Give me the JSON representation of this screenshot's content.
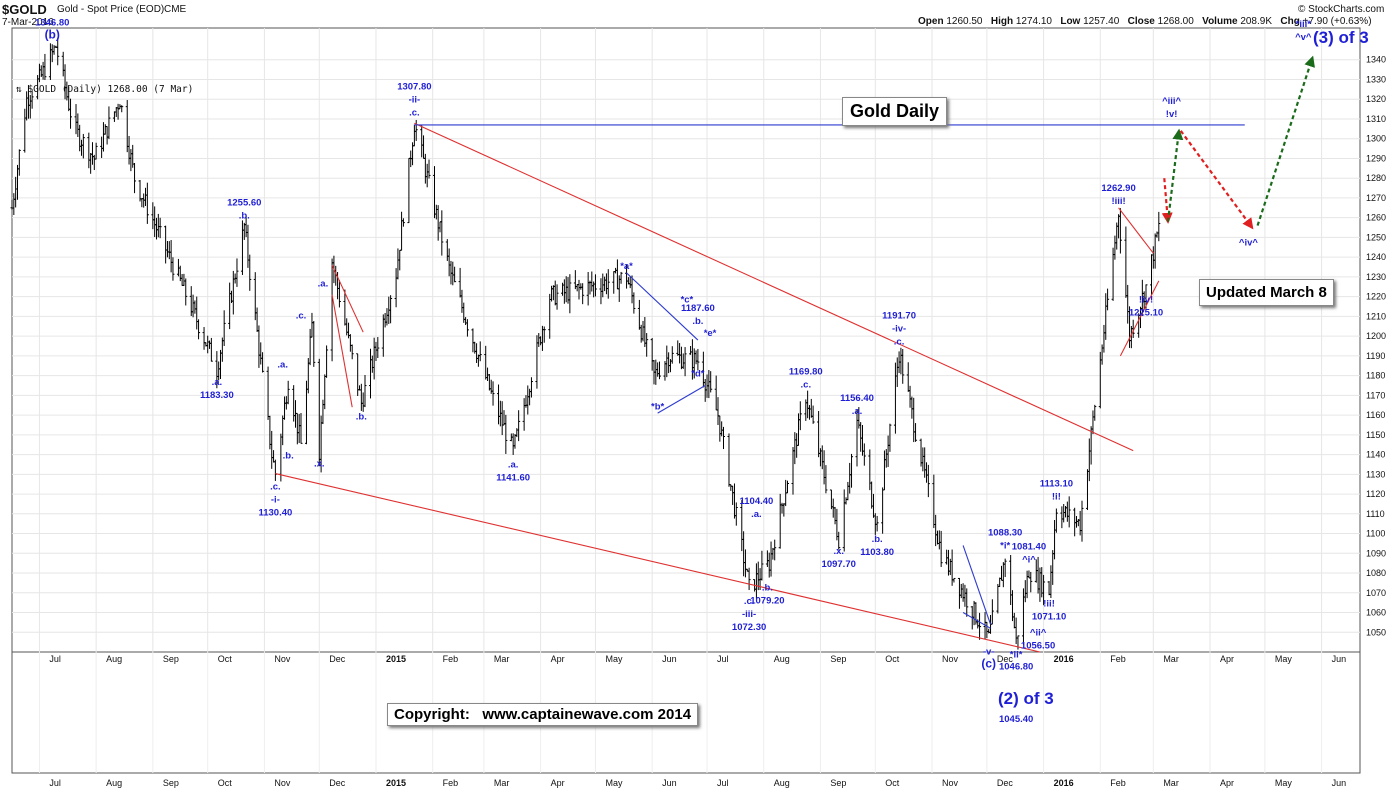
{
  "header": {
    "symbol": "$GOLD",
    "description": "Gold - Spot Price (EOD)",
    "exchange": "CME",
    "date": "7-Mar-2016",
    "brand": "© StockCharts.com",
    "ohlc": {
      "open_label": "Open",
      "open": "1260.50",
      "high_label": "High",
      "high": "1274.10",
      "low_label": "Low",
      "low": "1257.40",
      "close_label": "Close",
      "close": "1268.00",
      "volume_label": "Volume",
      "volume": "208.9K",
      "chg_label": "Chg",
      "chg": "+7.90 (+0.63%)"
    }
  },
  "legend": {
    "text": "$GOLD (Daily) 1268.00 (7 Mar)"
  },
  "annotations": {
    "title_box": "Gold Daily",
    "updated_box": "Updated March 8",
    "copyright_box": "Copyright:   www.captainewave.com 2014",
    "two_of_three": "(2) of 3",
    "three_of_three": "(3) of 3"
  },
  "colors": {
    "wave_labels": "#1f1fd6",
    "trendlines": "#e03030",
    "resistance": "#2e3bd0",
    "bars": "#000000",
    "projection_up": "#1a6b1a",
    "projection_down": "#e02020"
  },
  "chart_data": {
    "type": "ohlc",
    "title": "Gold Daily",
    "ylim": [
      1040,
      1350
    ],
    "y_ticks": [
      1050,
      1060,
      1070,
      1080,
      1090,
      1100,
      1110,
      1120,
      1130,
      1140,
      1150,
      1160,
      1170,
      1180,
      1190,
      1200,
      1210,
      1220,
      1230,
      1240,
      1250,
      1260,
      1270,
      1280,
      1290,
      1300,
      1310,
      1320,
      1330,
      1340
    ],
    "x_ticks": [
      "Jul",
      "Aug",
      "Sep",
      "Oct",
      "Nov",
      "Dec",
      "2015",
      "Feb",
      "Mar",
      "Apr",
      "May",
      "Jun",
      "Jul",
      "Aug",
      "Sep",
      "Oct",
      "Nov",
      "Dec",
      "2016",
      "Feb",
      "Mar",
      "Apr",
      "May",
      "Jun"
    ],
    "x_range": [
      "2014-06-16",
      "2016-06-22"
    ],
    "grid": true,
    "price_path": [
      [
        "2014-06-16",
        1265
      ],
      [
        "2014-06-24",
        1320
      ],
      [
        "2014-07-01",
        1330
      ],
      [
        "2014-07-10",
        1346.8
      ],
      [
        "2014-07-20",
        1305
      ],
      [
        "2014-07-31",
        1290
      ],
      [
        "2014-08-14",
        1320
      ],
      [
        "2014-08-22",
        1280
      ],
      [
        "2014-09-10",
        1240
      ],
      [
        "2014-09-22",
        1215
      ],
      [
        "2014-10-06",
        1183.3
      ],
      [
        "2014-10-21",
        1255.6
      ],
      [
        "2014-11-05",
        1140
      ],
      [
        "2014-11-07",
        1130.4
      ],
      [
        "2014-11-14",
        1178
      ],
      [
        "2014-11-21",
        1145
      ],
      [
        "2014-11-27",
        1205
      ],
      [
        "2014-12-01",
        1142
      ],
      [
        "2014-12-08",
        1238
      ],
      [
        "2014-12-24",
        1166
      ],
      [
        "2015-01-12",
        1232
      ],
      [
        "2015-01-22",
        1307.8
      ],
      [
        "2015-02-10",
        1234
      ],
      [
        "2015-03-06",
        1168
      ],
      [
        "2015-03-17",
        1141.6
      ],
      [
        "2015-04-06",
        1220
      ],
      [
        "2015-05-18",
        1230
      ],
      [
        "2015-06-02",
        1180
      ],
      [
        "2015-06-10",
        1190
      ],
      [
        "2015-06-26",
        1187.6
      ],
      [
        "2015-07-07",
        1160
      ],
      [
        "2015-07-24",
        1072.3
      ],
      [
        "2015-08-04",
        1085
      ],
      [
        "2015-08-24",
        1169.8
      ],
      [
        "2015-09-11",
        1097.7
      ],
      [
        "2015-09-21",
        1156.4
      ],
      [
        "2015-10-02",
        1103.8
      ],
      [
        "2015-10-14",
        1191.7
      ],
      [
        "2015-11-06",
        1090
      ],
      [
        "2015-12-02",
        1046.8
      ],
      [
        "2015-12-11",
        1088.3
      ],
      [
        "2015-12-17",
        1045.4
      ],
      [
        "2015-12-24",
        1081.4
      ],
      [
        "2016-01-04",
        1071.1
      ],
      [
        "2016-01-08",
        1113.1
      ],
      [
        "2016-01-21",
        1105
      ],
      [
        "2016-02-11",
        1262.9
      ],
      [
        "2016-02-17",
        1200
      ],
      [
        "2016-02-26",
        1225.1
      ],
      [
        "2016-03-07",
        1268
      ]
    ],
    "wave_labels": [
      {
        "d": "2014-07-08",
        "p": 1346.8,
        "lines": [
          "1346.80",
          "(b)"
        ],
        "pos": "above"
      },
      {
        "d": "2014-10-06",
        "p": 1183.3,
        "lines": [
          ".a.",
          "1183.30"
        ],
        "pos": "below"
      },
      {
        "d": "2014-10-21",
        "p": 1255.6,
        "lines": [
          "1255.60",
          ".b."
        ],
        "pos": "above"
      },
      {
        "d": "2014-11-07",
        "p": 1130.4,
        "lines": [
          ".c.",
          "-i-",
          "1130.40"
        ],
        "pos": "below"
      },
      {
        "d": "2014-11-11",
        "p": 1180,
        "lines": [
          ".a."
        ],
        "pos": "above"
      },
      {
        "d": "2014-11-14",
        "p": 1146,
        "lines": [
          ".b."
        ],
        "pos": "below"
      },
      {
        "d": "2014-11-21",
        "p": 1205,
        "lines": [
          ".c."
        ],
        "pos": "above"
      },
      {
        "d": "2014-12-01",
        "p": 1142,
        "lines": [
          ".x."
        ],
        "pos": "below"
      },
      {
        "d": "2014-12-03",
        "p": 1221,
        "lines": [
          ".a."
        ],
        "pos": "above"
      },
      {
        "d": "2014-12-24",
        "p": 1166,
        "lines": [
          ".b."
        ],
        "pos": "below"
      },
      {
        "d": "2015-01-22",
        "p": 1307.8,
        "lines": [
          "1307.80",
          "-ii-",
          ".c."
        ],
        "pos": "above"
      },
      {
        "d": "2015-03-17",
        "p": 1141.6,
        "lines": [
          ".a.",
          "1141.60"
        ],
        "pos": "below"
      },
      {
        "d": "2015-05-18",
        "p": 1230,
        "lines": [
          "*a*"
        ],
        "pos": "above"
      },
      {
        "d": "2015-06-04",
        "p": 1171,
        "lines": [
          "*b*"
        ],
        "pos": "below"
      },
      {
        "d": "2015-06-20",
        "p": 1213,
        "lines": [
          "*c*"
        ],
        "pos": "above"
      },
      {
        "d": "2015-06-26",
        "p": 1187.6,
        "lines": [
          "*d*"
        ],
        "pos": "below"
      },
      {
        "d": "2015-06-27",
        "p": 1202,
        "lines": [
          "*e*"
        ],
        "pos": "right"
      },
      {
        "d": "2015-06-26",
        "p": 1202,
        "lines": [
          "1187.60",
          ".b."
        ],
        "pos": "above"
      },
      {
        "d": "2015-07-24",
        "p": 1072.3,
        "lines": [
          ".c.",
          "-iii-",
          "1072.30"
        ],
        "pos": "below"
      },
      {
        "d": "2015-07-28",
        "p": 1104.4,
        "lines": [
          "1104.40",
          ".a."
        ],
        "pos": "above"
      },
      {
        "d": "2015-08-03",
        "p": 1079.2,
        "lines": [
          ".b.",
          "1079.20"
        ],
        "pos": "below"
      },
      {
        "d": "2015-08-24",
        "p": 1169.8,
        "lines": [
          "1169.80",
          ".c."
        ],
        "pos": "above"
      },
      {
        "d": "2015-09-11",
        "p": 1097.7,
        "lines": [
          ".x.",
          "1097.70"
        ],
        "pos": "below"
      },
      {
        "d": "2015-09-21",
        "p": 1156.4,
        "lines": [
          "1156.40",
          ".a."
        ],
        "pos": "above"
      },
      {
        "d": "2015-10-02",
        "p": 1103.8,
        "lines": [
          ".b.",
          "1103.80"
        ],
        "pos": "below"
      },
      {
        "d": "2015-10-14",
        "p": 1191.7,
        "lines": [
          "1191.70",
          "-iv-",
          ".c."
        ],
        "pos": "above"
      },
      {
        "d": "2015-12-02",
        "p": 1046.8,
        "lines": [
          "-v-",
          "(c)"
        ],
        "pos": "below"
      },
      {
        "d": "2015-12-11",
        "p": 1088.3,
        "lines": [
          "1088.30",
          "*i*"
        ],
        "pos": "above"
      },
      {
        "d": "2015-12-17",
        "p": 1045.4,
        "lines": [
          "*ii*"
        ],
        "pos": "below"
      },
      {
        "d": "2015-12-17",
        "p": 1045.4,
        "lines": [
          "1046.80"
        ],
        "pos": "below2"
      },
      {
        "d": "2015-12-24",
        "p": 1081.4,
        "lines": [
          "1081.40",
          "^i^"
        ],
        "pos": "above"
      },
      {
        "d": "2015-12-29",
        "p": 1056.5,
        "lines": [
          "^ii^",
          "1056.50"
        ],
        "pos": "below"
      },
      {
        "d": "2016-01-04",
        "p": 1071.1,
        "lines": [
          "!ii!",
          "1071.10"
        ],
        "pos": "below"
      },
      {
        "d": "2016-01-08",
        "p": 1113.1,
        "lines": [
          "1113.10",
          "!i!"
        ],
        "pos": "above"
      },
      {
        "d": "2016-02-11",
        "p": 1262.9,
        "lines": [
          "1262.90",
          "!iii!"
        ],
        "pos": "above"
      },
      {
        "d": "2016-02-26",
        "p": 1225.1,
        "lines": [
          "!iv!",
          "1225.10"
        ],
        "pos": "below"
      },
      {
        "d": "2016-03-11",
        "p": 1307,
        "lines": [
          "^iii^",
          "!v!"
        ],
        "pos": "above"
      },
      {
        "d": "2016-04-22",
        "p": 1254,
        "lines": [
          "^iv^"
        ],
        "pos": "below"
      },
      {
        "d": "2016-05-22",
        "p": 1346,
        "lines": [
          "*iii*",
          "^v^"
        ],
        "pos": "above"
      }
    ],
    "bottom_labels": [
      {
        "d": "2015-12-17",
        "lines": [
          "1045.40"
        ]
      }
    ],
    "trendlines": [
      {
        "color": "red",
        "from": [
          "2015-01-22",
          1307.8
        ],
        "to": [
          "2016-02-19",
          1142
        ]
      },
      {
        "color": "red",
        "from": [
          "2014-11-07",
          1130.4
        ],
        "to": [
          "2015-12-30",
          1040
        ]
      },
      {
        "color": "red",
        "from": [
          "2014-12-08",
          1236
        ],
        "to": [
          "2014-12-25",
          1202
        ]
      },
      {
        "color": "red",
        "from": [
          "2014-12-08",
          1221
        ],
        "to": [
          "2014-12-19",
          1164
        ]
      },
      {
        "color": "red",
        "from": [
          "2016-02-11",
          1265
        ],
        "to": [
          "2016-03-01",
          1242
        ]
      },
      {
        "color": "red",
        "from": [
          "2016-02-12",
          1190
        ],
        "to": [
          "2016-03-04",
          1228
        ]
      },
      {
        "color": "blue",
        "from": [
          "2015-05-18",
          1232
        ],
        "to": [
          "2015-06-26",
          1198
        ]
      },
      {
        "color": "blue",
        "from": [
          "2015-06-04",
          1161
        ],
        "to": [
          "2015-06-30",
          1175
        ]
      },
      {
        "color": "blue",
        "from": [
          "2015-11-18",
          1094
        ],
        "to": [
          "2015-12-03",
          1054
        ]
      },
      {
        "color": "blue",
        "from": [
          "2015-11-18",
          1060
        ],
        "to": [
          "2015-12-03",
          1052
        ]
      },
      {
        "color": "resistance",
        "from": [
          "2015-01-22",
          1307
        ],
        "to": [
          "2016-04-20",
          1307
        ]
      }
    ],
    "projections": [
      {
        "color": "red",
        "from": [
          "2016-03-07",
          1280
        ],
        "to": [
          "2016-03-09",
          1258
        ]
      },
      {
        "color": "green",
        "from": [
          "2016-03-09",
          1258
        ],
        "to": [
          "2016-03-15",
          1304
        ]
      },
      {
        "color": "red",
        "from": [
          "2016-03-16",
          1304
        ],
        "to": [
          "2016-04-24",
          1255
        ]
      },
      {
        "color": "green",
        "from": [
          "2016-04-27",
          1256
        ],
        "to": [
          "2016-05-27",
          1341
        ]
      }
    ]
  }
}
